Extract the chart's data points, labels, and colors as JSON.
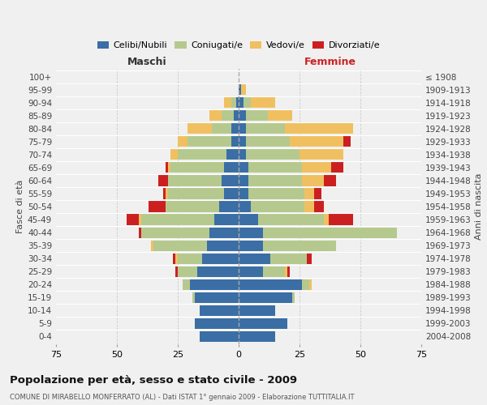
{
  "age_groups": [
    "0-4",
    "5-9",
    "10-14",
    "15-19",
    "20-24",
    "25-29",
    "30-34",
    "35-39",
    "40-44",
    "45-49",
    "50-54",
    "55-59",
    "60-64",
    "65-69",
    "70-74",
    "75-79",
    "80-84",
    "85-89",
    "90-94",
    "95-99",
    "100+"
  ],
  "birth_years": [
    "2004-2008",
    "1999-2003",
    "1994-1998",
    "1989-1993",
    "1984-1988",
    "1979-1983",
    "1974-1978",
    "1969-1973",
    "1964-1968",
    "1959-1963",
    "1954-1958",
    "1949-1953",
    "1944-1948",
    "1939-1943",
    "1934-1938",
    "1929-1933",
    "1924-1928",
    "1919-1923",
    "1914-1918",
    "1909-1913",
    "≤ 1908"
  ],
  "colors": {
    "celibi": "#3a6ea5",
    "coniugati": "#b5c98e",
    "vedovi": "#f0c060",
    "divorziati": "#cc2020"
  },
  "males": {
    "celibi": [
      16,
      18,
      16,
      18,
      20,
      17,
      15,
      13,
      12,
      10,
      8,
      6,
      7,
      6,
      5,
      3,
      3,
      2,
      1,
      0,
      0
    ],
    "coniugati": [
      0,
      0,
      0,
      1,
      3,
      8,
      10,
      22,
      28,
      30,
      22,
      23,
      22,
      22,
      20,
      18,
      8,
      5,
      2,
      0,
      0
    ],
    "vedovi": [
      0,
      0,
      0,
      0,
      0,
      0,
      1,
      1,
      0,
      1,
      0,
      1,
      0,
      1,
      3,
      4,
      10,
      5,
      3,
      0,
      0
    ],
    "divorziati": [
      0,
      0,
      0,
      0,
      0,
      1,
      1,
      0,
      1,
      5,
      7,
      1,
      4,
      1,
      0,
      0,
      0,
      0,
      0,
      0,
      0
    ]
  },
  "females": {
    "celibi": [
      15,
      20,
      15,
      22,
      26,
      10,
      13,
      10,
      10,
      8,
      5,
      4,
      4,
      4,
      3,
      3,
      3,
      3,
      2,
      1,
      0
    ],
    "coniugati": [
      0,
      0,
      0,
      1,
      3,
      9,
      15,
      30,
      55,
      27,
      22,
      23,
      22,
      22,
      22,
      18,
      16,
      9,
      3,
      0,
      0
    ],
    "vedovi": [
      0,
      0,
      0,
      0,
      1,
      1,
      0,
      0,
      0,
      2,
      4,
      4,
      9,
      12,
      18,
      22,
      28,
      10,
      10,
      2,
      0
    ],
    "divorziati": [
      0,
      0,
      0,
      0,
      0,
      1,
      2,
      0,
      0,
      10,
      4,
      3,
      5,
      5,
      0,
      3,
      0,
      0,
      0,
      0,
      0
    ]
  },
  "xlim": 75,
  "title": "Popolazione per età, sesso e stato civile - 2009",
  "subtitle": "COMUNE DI MIRABELLO MONFERRATO (AL) - Dati ISTAT 1° gennaio 2009 - Elaborazione TUTTITALIA.IT",
  "ylabel_left": "Fasce di età",
  "ylabel_right": "Anni di nascita",
  "xlabel_left": "Maschi",
  "xlabel_right": "Femmine",
  "legend_labels": [
    "Celibi/Nubili",
    "Coniugati/e",
    "Vedovi/e",
    "Divorziati/e"
  ],
  "bg_color": "#f0f0f0"
}
